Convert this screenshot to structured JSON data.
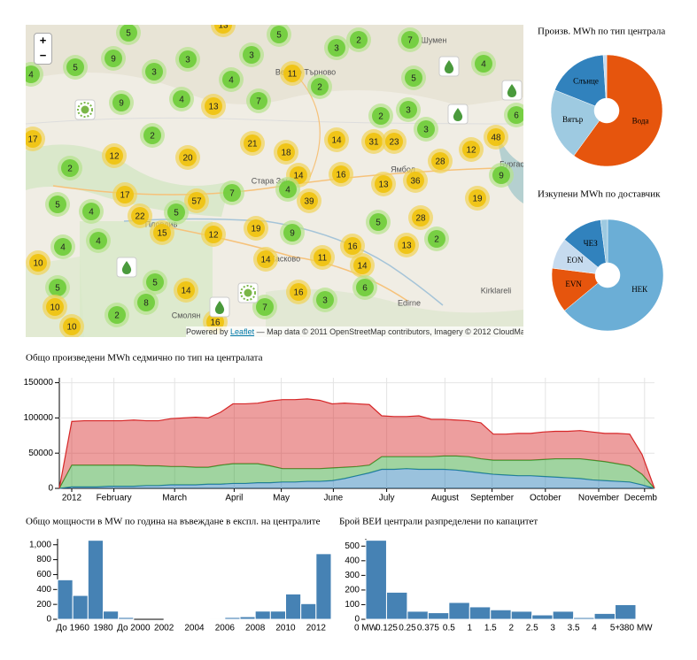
{
  "map": {
    "zoom_in": "+",
    "zoom_out": "−",
    "cities": [
      "Шумен",
      "Велико Търново",
      "Ямбол",
      "Бургас",
      "Стара Загора",
      "Пловдив",
      "Хасково",
      "Смолян",
      "Edirne",
      "Kirklareli"
    ],
    "clusters": [
      5,
      13,
      5,
      2,
      7,
      4,
      5,
      9,
      3,
      3,
      3,
      3,
      11,
      2,
      4,
      5,
      4,
      4,
      9,
      13,
      7,
      2,
      3,
      6,
      3,
      2,
      17,
      21,
      14,
      31,
      23,
      48,
      12,
      20,
      18,
      12,
      2,
      14,
      16,
      28,
      9,
      17,
      57,
      7,
      4,
      39,
      13,
      36,
      5,
      4,
      22,
      5,
      19,
      15,
      12,
      19,
      9,
      5,
      28,
      4,
      4,
      16,
      13,
      2,
      10,
      14,
      11,
      14,
      5,
      5,
      14,
      16,
      6,
      10,
      8,
      2,
      7,
      3,
      16,
      10
    ],
    "attribution": {
      "prefix": "Powered by",
      "link": "Leaflet",
      "text": "— Map data © 2011 OpenStreetMap contributors, Imagery © 2012 CloudMade"
    }
  },
  "chart_data": [
    {
      "type": "pie",
      "title": "Произв. MWh по тип централа",
      "categories": [
        "Вода",
        "Вятър",
        "Слънце",
        null
      ],
      "values": [
        60,
        21,
        18,
        1
      ],
      "colors": [
        "#e6550d",
        "#9ecae1",
        "#3182bd",
        "#c6dbef"
      ]
    },
    {
      "type": "pie",
      "title": "Изкупени MWh по доставчик",
      "categories": [
        "НЕК",
        "EVN",
        "EON",
        "ЧЕЗ",
        null
      ],
      "values": [
        64,
        13,
        9,
        12,
        2
      ],
      "colors": [
        "#6baed6",
        "#e6550d",
        "#c6dbef",
        "#3182bd",
        "#9ecae1"
      ]
    },
    {
      "type": "area",
      "stacked": true,
      "title": "Общо произведени MWh седмично по тип на централата",
      "x": [
        0,
        1,
        2,
        3,
        4,
        5,
        6,
        7,
        8,
        9,
        10,
        11,
        12,
        13,
        14,
        15,
        16,
        17,
        18,
        19,
        20,
        21,
        22,
        23,
        24,
        25,
        26,
        27,
        28,
        29,
        30,
        31,
        32,
        33,
        34,
        35,
        36,
        37,
        38,
        39,
        40,
        41,
        42,
        43,
        44,
        45,
        46,
        47,
        48
      ],
      "xlim": [
        0,
        48
      ],
      "xticks": [
        {
          "value": 1,
          "label": "2012"
        },
        {
          "value": 4.4,
          "label": "February"
        },
        {
          "value": 9.3,
          "label": "March"
        },
        {
          "value": 14.1,
          "label": "April"
        },
        {
          "value": 17.9,
          "label": "May"
        },
        {
          "value": 22.1,
          "label": "June"
        },
        {
          "value": 26.4,
          "label": "July"
        },
        {
          "value": 31.1,
          "label": "August"
        },
        {
          "value": 34.9,
          "label": "September"
        },
        {
          "value": 39.2,
          "label": "October"
        },
        {
          "value": 43.5,
          "label": "November"
        },
        {
          "value": 47.2,
          "label": "December"
        }
      ],
      "ylim": [
        0,
        157000
      ],
      "yticks": [
        0,
        50000,
        100000,
        150000
      ],
      "grid": true,
      "series": [
        {
          "color": "#1f77b4",
          "values": [
            0,
            2000,
            2000,
            2000,
            3000,
            3000,
            3000,
            4000,
            4000,
            5000,
            5000,
            5000,
            6000,
            6000,
            7000,
            7000,
            8000,
            8000,
            9000,
            9000,
            10000,
            10000,
            11000,
            14000,
            18000,
            22000,
            27000,
            27000,
            28000,
            27000,
            27000,
            27000,
            26000,
            24000,
            22000,
            20000,
            19000,
            18000,
            18000,
            17000,
            16000,
            15000,
            14000,
            12000,
            11000,
            10000,
            9000,
            5000,
            0
          ]
        },
        {
          "color": "#2ca02c",
          "values": [
            0,
            31000,
            31000,
            31000,
            30000,
            30000,
            30000,
            28000,
            28000,
            26000,
            26000,
            25000,
            24000,
            27000,
            28000,
            28000,
            27000,
            24000,
            19000,
            19000,
            18000,
            18000,
            18000,
            16000,
            13000,
            11000,
            18000,
            18000,
            17000,
            18000,
            18000,
            19000,
            20000,
            21000,
            20000,
            20000,
            21000,
            22000,
            22000,
            24000,
            26000,
            27000,
            28000,
            28000,
            27000,
            25000,
            23000,
            15000,
            0
          ]
        },
        {
          "color": "#d62728",
          "values": [
            0,
            62000,
            63000,
            63000,
            63000,
            63000,
            64000,
            64000,
            64000,
            68000,
            69000,
            71000,
            70000,
            75000,
            85000,
            85000,
            86000,
            92000,
            98000,
            98000,
            99000,
            97000,
            91000,
            91000,
            89000,
            86000,
            58000,
            57000,
            57000,
            58000,
            53000,
            52000,
            51000,
            51000,
            51000,
            37000,
            37000,
            38000,
            38000,
            39000,
            39000,
            39000,
            40000,
            40000,
            40000,
            43000,
            45000,
            28000,
            0
          ]
        }
      ]
    },
    {
      "type": "bar",
      "title": "Общо мощности в MW по година на въвеждане в експл. на централите",
      "categories": [
        null,
        "До 1960",
        null,
        "1980",
        null,
        "До 2000",
        null,
        2002,
        null,
        2004,
        null,
        2006,
        null,
        2008,
        null,
        2010,
        null,
        2012
      ],
      "values": [
        530,
        320,
        1060,
        110,
        25,
        0,
        0,
        5,
        8,
        8,
        12,
        25,
        35,
        110,
        110,
        340,
        210,
        880
      ],
      "color": "#4682b4",
      "ylim": [
        0,
        1080
      ],
      "yticks": [
        0,
        200,
        400,
        600,
        800,
        {
          "value": 1000,
          "label": "1,000"
        }
      ]
    },
    {
      "type": "histogram",
      "title": "Брой ВЕИ централи разпределени по капацитет",
      "bins": [
        "0 MW",
        0.125,
        0.25,
        0.375,
        0.5,
        1,
        1.5,
        2,
        2.5,
        3,
        3.5,
        4,
        "5+",
        "380 MW"
      ],
      "values": [
        540,
        185,
        55,
        45,
        115,
        85,
        65,
        55,
        30,
        55,
        12,
        40,
        100
      ],
      "color": "#4682b4",
      "ylim": [
        0,
        550
      ],
      "yticks": [
        0,
        100,
        200,
        300,
        400,
        500
      ]
    }
  ]
}
